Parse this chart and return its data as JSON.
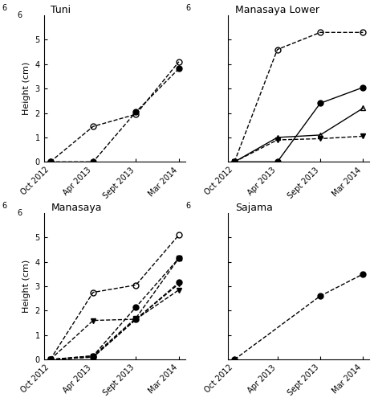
{
  "x_ticks": [
    0,
    1,
    2,
    3
  ],
  "x_labels": [
    "Oct 2012",
    "Apr 2013",
    "Sept 2013",
    "Mar 2014"
  ],
  "ylim": [
    0,
    6
  ],
  "yticks": [
    0,
    1,
    2,
    3,
    4,
    5,
    6
  ],
  "tuni": {
    "title": "Tuni",
    "series": [
      {
        "x": [
          0,
          1,
          2,
          3
        ],
        "y": [
          0,
          1.45,
          1.95,
          4.1
        ],
        "marker": "o",
        "fillstyle": "none",
        "linestyle": "--"
      },
      {
        "x": [
          0,
          1,
          2,
          3
        ],
        "y": [
          0,
          0.0,
          2.05,
          3.82
        ],
        "marker": "o",
        "fillstyle": "full",
        "linestyle": "--"
      }
    ]
  },
  "manasaya_lower": {
    "title": "Manasaya Lower",
    "series": [
      {
        "x": [
          0,
          1,
          2,
          3
        ],
        "y": [
          0,
          4.6,
          5.3,
          5.3
        ],
        "marker": "o",
        "fillstyle": "none",
        "linestyle": "--"
      },
      {
        "x": [
          0,
          1,
          2,
          3
        ],
        "y": [
          0,
          0.0,
          2.4,
          3.05
        ],
        "marker": "o",
        "fillstyle": "full",
        "linestyle": "-"
      },
      {
        "x": [
          0,
          1,
          2,
          3
        ],
        "y": [
          0,
          1.0,
          1.1,
          2.2
        ],
        "marker": "^",
        "fillstyle": "none",
        "linestyle": "-"
      },
      {
        "x": [
          0,
          1,
          2,
          3
        ],
        "y": [
          0,
          0.9,
          0.95,
          1.05
        ],
        "marker": "v",
        "fillstyle": "full",
        "linestyle": "--"
      }
    ]
  },
  "manasaya": {
    "title": "Manasaya",
    "series": [
      {
        "x": [
          0,
          1,
          2,
          3
        ],
        "y": [
          0,
          2.75,
          3.05,
          5.1
        ],
        "marker": "o",
        "fillstyle": "none",
        "linestyle": "--"
      },
      {
        "x": [
          0,
          1,
          2,
          3
        ],
        "y": [
          0,
          0.15,
          2.15,
          4.15
        ],
        "marker": "o",
        "fillstyle": "full",
        "linestyle": "--"
      },
      {
        "x": [
          0,
          1,
          2,
          3
        ],
        "y": [
          0,
          0.15,
          1.7,
          4.15
        ],
        "marker": "s",
        "fillstyle": "full",
        "linestyle": "--"
      },
      {
        "x": [
          0,
          1,
          2,
          3
        ],
        "y": [
          0,
          0.1,
          1.65,
          3.15
        ],
        "marker": "o",
        "fillstyle": "full",
        "linestyle": "--"
      },
      {
        "x": [
          0,
          1,
          2,
          3
        ],
        "y": [
          0,
          1.6,
          1.65,
          2.85
        ],
        "marker": "v",
        "fillstyle": "full",
        "linestyle": "--"
      },
      {
        "x": [
          0,
          1,
          2,
          3
        ],
        "y": [
          0,
          0.1,
          1.65,
          3.1
        ],
        "marker": "v",
        "fillstyle": "full",
        "linestyle": "--"
      }
    ]
  },
  "sajama": {
    "title": "Sajama",
    "series": [
      {
        "x": [
          0,
          2,
          3
        ],
        "y": [
          0,
          2.6,
          3.5
        ],
        "marker": "o",
        "fillstyle": "full",
        "linestyle": "--"
      }
    ]
  }
}
